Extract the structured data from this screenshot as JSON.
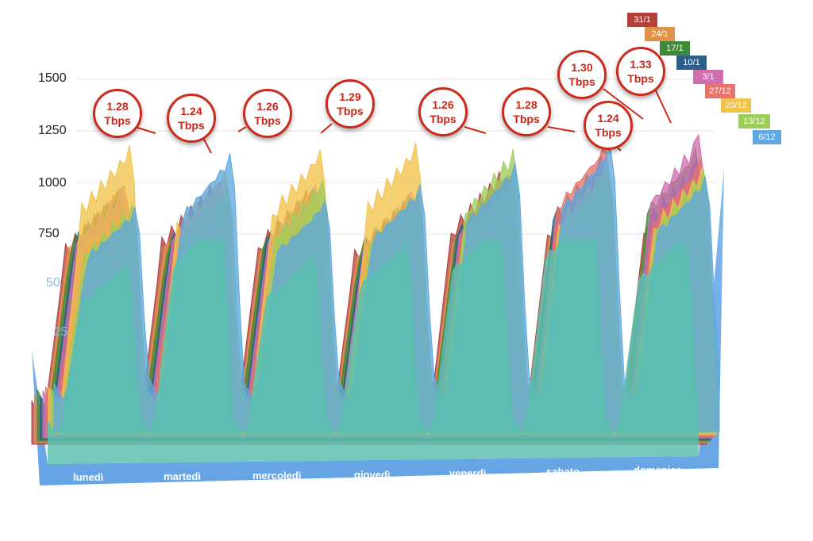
{
  "chart_data": {
    "type": "area",
    "y_ticks": [
      "1500",
      "1250",
      "1000",
      "750",
      "50",
      "25"
    ],
    "ylim": [
      0,
      1500
    ],
    "categories": [
      "lunedì",
      "martedì",
      "mercoledì",
      "giovedì",
      "venerdì",
      "sabato",
      "domenica"
    ],
    "series": [
      {
        "name": "31/1",
        "color": "#b5403a",
        "peaks": [
          1080,
          1120,
          1100,
          1050,
          1180,
          1170,
          1180
        ]
      },
      {
        "name": "24/1",
        "color": "#e0924a",
        "peaks": [
          1090,
          1100,
          1080,
          1040,
          1120,
          1150,
          1200
        ]
      },
      {
        "name": "17/1",
        "color": "#3f8a3a",
        "peaks": [
          1100,
          1090,
          1090,
          1060,
          1130,
          1140,
          1280
        ]
      },
      {
        "name": "10/1",
        "color": "#2d5f8a",
        "peaks": [
          1100,
          1100,
          1100,
          1070,
          1140,
          1240,
          1230
        ]
      },
      {
        "name": "3/1",
        "color": "#cf6fb0",
        "peaks": [
          1110,
          1120,
          1110,
          1080,
          1150,
          1200,
          1330
        ]
      },
      {
        "name": "27/12",
        "color": "#e8736a",
        "peaks": [
          1050,
          1080,
          1070,
          1050,
          1150,
          1300,
          1220
        ]
      },
      {
        "name": "20/12",
        "color": "#f1c34a",
        "peaks": [
          1280,
          1170,
          1260,
          1290,
          1150,
          1200,
          1180
        ]
      },
      {
        "name": "13/12",
        "color": "#9ccc5c",
        "peaks": [
          1020,
          1100,
          1120,
          1080,
          1260,
          1180,
          1170
        ]
      },
      {
        "name": "6/12",
        "color": "#5fa8e0",
        "peaks": [
          1000,
          1240,
          1030,
          1100,
          1200,
          1280,
          1140
        ]
      }
    ],
    "annotations": [
      {
        "value": "1.28",
        "unit": "Tbps"
      },
      {
        "value": "1.24",
        "unit": "Tbps"
      },
      {
        "value": "1.26",
        "unit": "Tbps"
      },
      {
        "value": "1.29",
        "unit": "Tbps"
      },
      {
        "value": "1.26",
        "unit": "Tbps"
      },
      {
        "value": "1.28",
        "unit": "Tbps"
      },
      {
        "value": "1.24",
        "unit": "Tbps"
      },
      {
        "value": "1.30",
        "unit": "Tbps"
      },
      {
        "value": "1.33",
        "unit": "Tbps"
      }
    ],
    "grid": true,
    "legend": "top-right"
  }
}
